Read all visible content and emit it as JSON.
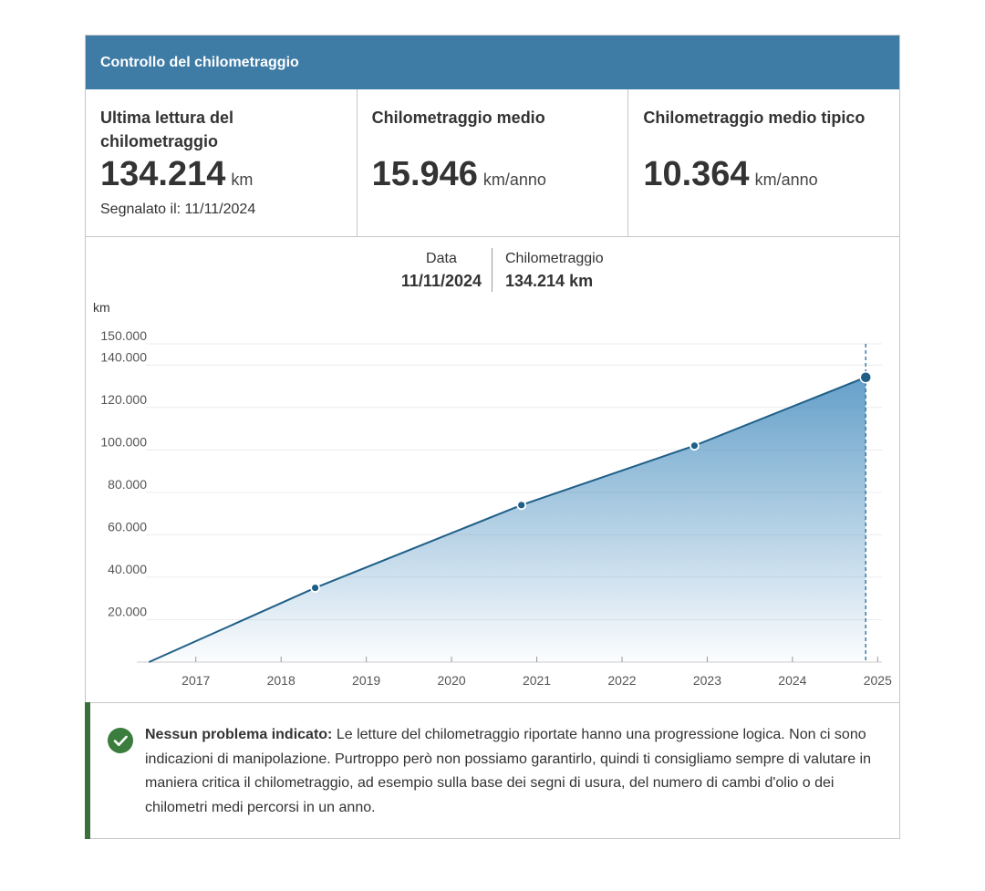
{
  "header": {
    "title": "Controllo del chilometraggio"
  },
  "stats": [
    {
      "label": "Ultima lettura del chilometraggio",
      "value": "134.214",
      "unit": "km",
      "sub": "Segnalato il: 11/11/2024"
    },
    {
      "label": "Chilometraggio medio",
      "value": "15.946",
      "unit": "km/anno"
    },
    {
      "label": "Chilometraggio medio tipico",
      "value": "10.364",
      "unit": "km/anno"
    }
  ],
  "tooltip": {
    "date_label": "Data",
    "date_value": "11/11/2024",
    "km_label": "Chilometraggio",
    "km_value": "134.214 km"
  },
  "chart_data": {
    "type": "area",
    "ylabel": "km",
    "ylim": [
      0,
      150000
    ],
    "xlim": [
      2016.35,
      2025.05
    ],
    "y_ticks": [
      {
        "v": 150000,
        "label": "150.000"
      },
      {
        "v": 140000,
        "label": "140.000"
      },
      {
        "v": 120000,
        "label": "120.000"
      },
      {
        "v": 100000,
        "label": "100.000"
      },
      {
        "v": 80000,
        "label": "80.000"
      },
      {
        "v": 60000,
        "label": "60.000"
      },
      {
        "v": 40000,
        "label": "40.000"
      },
      {
        "v": 20000,
        "label": "20.000"
      }
    ],
    "x_ticks": [
      {
        "v": 2017,
        "label": "2017"
      },
      {
        "v": 2018,
        "label": "2018"
      },
      {
        "v": 2019,
        "label": "2019"
      },
      {
        "v": 2020,
        "label": "2020"
      },
      {
        "v": 2021,
        "label": "2021"
      },
      {
        "v": 2022,
        "label": "2022"
      },
      {
        "v": 2023,
        "label": "2023"
      },
      {
        "v": 2024,
        "label": "2024"
      },
      {
        "v": 2025,
        "label": "2025"
      }
    ],
    "series": [
      {
        "points": [
          {
            "x": 2016.45,
            "y": 0
          },
          {
            "x": 2018.4,
            "y": 35000
          },
          {
            "x": 2020.82,
            "y": 74000
          },
          {
            "x": 2022.85,
            "y": 102000
          },
          {
            "x": 2024.86,
            "y": 134214
          }
        ]
      }
    ],
    "highlight_x": 2024.86,
    "colors": {
      "line": "#1f5f87",
      "fill": "#4a8fc0",
      "marker": "#1f5f87"
    },
    "grid": true
  },
  "notice": {
    "lead": "Nessun problema indicato:",
    "text": " Le letture del chilometraggio riportate hanno una progressione logica. Non ci sono indicazioni di manipolazione. Purtroppo però non possiamo garantirlo, quindi ti consigliamo sempre di valutare in maniera critica il chilometraggio, ad esempio sulla base dei segni di usura, del numero di cambi d'olio o dei chilometri medi percorsi in un anno.",
    "icon": "check-circle-icon",
    "accent": "#3a6f3b"
  }
}
